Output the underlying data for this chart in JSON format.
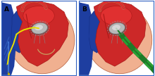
{
  "fig_width": 2.2,
  "fig_height": 1.08,
  "dpi": 100,
  "bg_color": "#ffffff",
  "label_A": "A",
  "label_B": "B",
  "label_fontsize": 6.5,
  "skin_color": "#f0b090",
  "red_color": "#cc2828",
  "red_dark": "#aa1818",
  "red_light": "#e03030",
  "blue_color": "#1e3ea0",
  "blue_dark": "#152e80",
  "valve_fill": "#b8b8b8",
  "valve_edge": "#787878",
  "valve_shine": "#e0e0e0",
  "wire_yellow": "#e8e000",
  "wire_tan": "#c8a060",
  "catheter_green": "#1e7a28",
  "catheter_light": "#2aa035",
  "aorta_color": "#cc2828",
  "outline_color": "#c07050",
  "border_color": "#3060c0"
}
